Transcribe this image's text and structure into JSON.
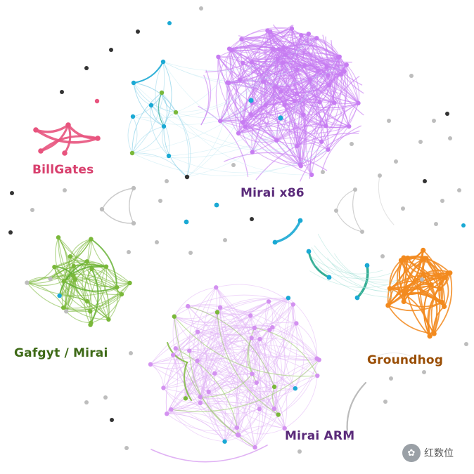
{
  "colors": {
    "billgates": "#e8547e",
    "mirai_x86": "#c77cf2",
    "mirai_x86_text": "#5a2a7a",
    "gafgyt": "#7ab83a",
    "gafgyt_text": "#3e6a17",
    "mirai_arm": "#d391f0",
    "mirai_arm_text": "#5a2a7a",
    "groundhog": "#f28a1e",
    "groundhog_text": "#9a4e05",
    "cyan": "#1aa9d4",
    "teal": "#1fa58a",
    "gray": "#bdbdbd",
    "dark": "#333333"
  },
  "labels": {
    "billgates": "BillGates",
    "mirai_x86": "Mirai x86",
    "gafgyt": "Gafgyt / Mirai",
    "groundhog": "Groundhog",
    "mirai_arm": "Mirai ARM"
  },
  "watermark": {
    "icon": "wechat-icon",
    "text": "红数位"
  }
}
